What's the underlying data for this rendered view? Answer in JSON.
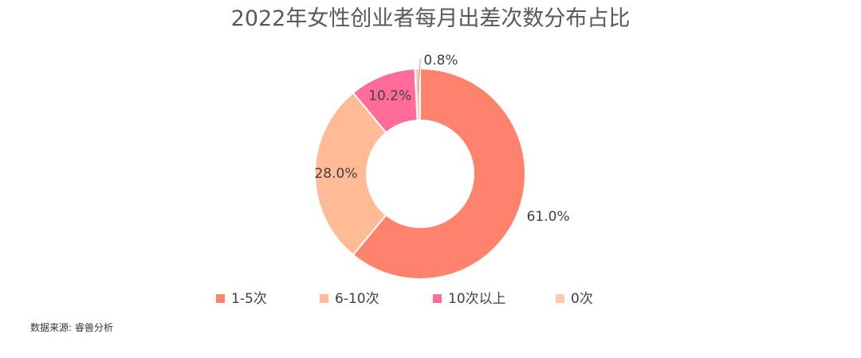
{
  "chart_data": {
    "type": "pie",
    "style": "donut",
    "title": "2022年女性创业者每月出差次数分布占比",
    "categories": [
      "1-5次",
      "6-10次",
      "10次以上",
      "0次"
    ],
    "values": [
      61.0,
      28.0,
      10.2,
      0.8
    ],
    "labels": [
      "61.0%",
      "28.0%",
      "10.2%",
      "0.8%"
    ],
    "colors": [
      "#FF826C",
      "#FFBB96",
      "#FF6C9A",
      "#FFC9AF"
    ],
    "legend_position": "bottom"
  },
  "source": "数据来源: 睿兽分析"
}
